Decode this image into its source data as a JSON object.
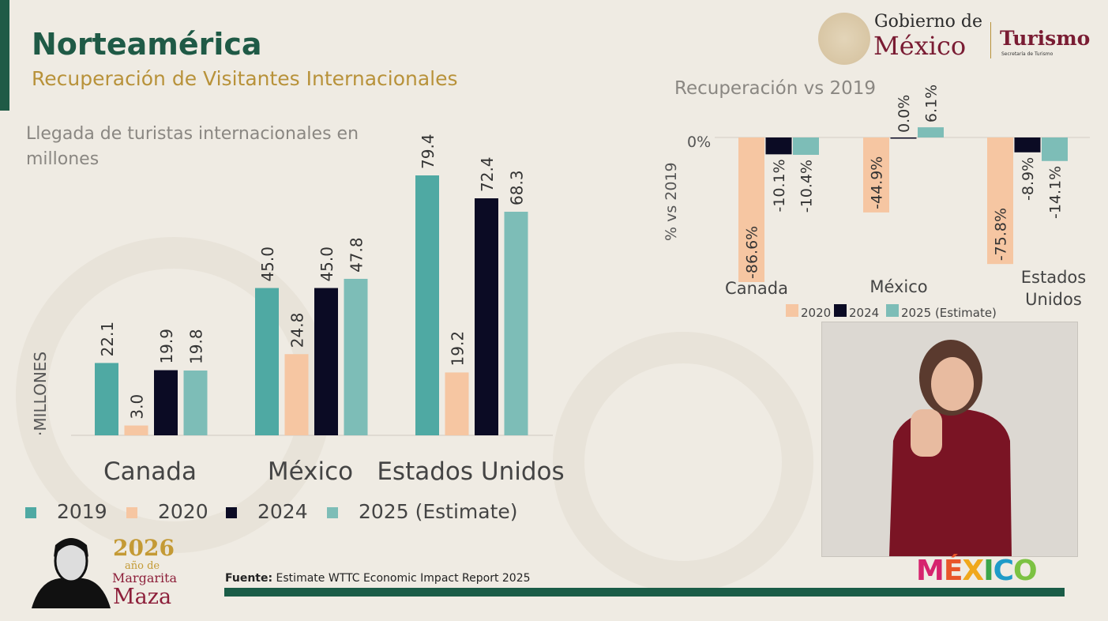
{
  "header": {
    "title": "Norteamérica",
    "subtitle": "Recuperación de Visitantes Internacionales"
  },
  "logos": {
    "gobierno_line1": "Gobierno de",
    "gobierno_line2": "México",
    "turismo": "Turismo",
    "turismo_sub": "Secretaría de Turismo",
    "mexico_brand": "MÉXICO",
    "margarita_year": "2026",
    "margarita_ano": "año de",
    "margarita_name1": "Margarita",
    "margarita_name2": "Maza"
  },
  "footer": {
    "source_label": "Fuente:",
    "source_text": "Estimate WTTC Economic Impact Report 2025"
  },
  "chart_data": [
    {
      "type": "bar",
      "title": "Llegada de turistas  internacionales en millones",
      "ylabel": "MILLONES",
      "categories": [
        "Canada",
        "México",
        "Estados Unidos"
      ],
      "series": [
        {
          "name": "2019",
          "values": [
            22.1,
            45.0,
            79.4
          ],
          "color": "#4fa9a3"
        },
        {
          "name": "2020",
          "values": [
            3.0,
            24.8,
            19.2
          ],
          "color": "#f6c6a2"
        },
        {
          "name": "2024",
          "values": [
            19.9,
            45.0,
            72.4
          ],
          "color": "#0b0b24"
        },
        {
          "name": "2025 (Estimate)",
          "values": [
            19.8,
            47.8,
            68.3
          ],
          "color": "#7dbdb7"
        }
      ],
      "ylim": [
        0,
        80
      ],
      "legend": "bottom",
      "grid": false
    },
    {
      "type": "bar",
      "title": "Recuperación vs 2019",
      "ylabel": "%  vs 2019",
      "ytick": "0%",
      "categories": [
        "Canada",
        "México",
        "Estados Unidos"
      ],
      "series": [
        {
          "name": "2020",
          "values": [
            -86.6,
            -44.9,
            -75.8
          ],
          "color": "#f6c6a2"
        },
        {
          "name": "2024",
          "values": [
            -10.1,
            0.0,
            -8.9
          ],
          "color": "#0b0b24"
        },
        {
          "name": "2025 (Estimate)",
          "values": [
            -10.4,
            6.1,
            -14.1
          ],
          "color": "#7dbdb7"
        }
      ],
      "legend": "bottom",
      "grid": false
    }
  ]
}
